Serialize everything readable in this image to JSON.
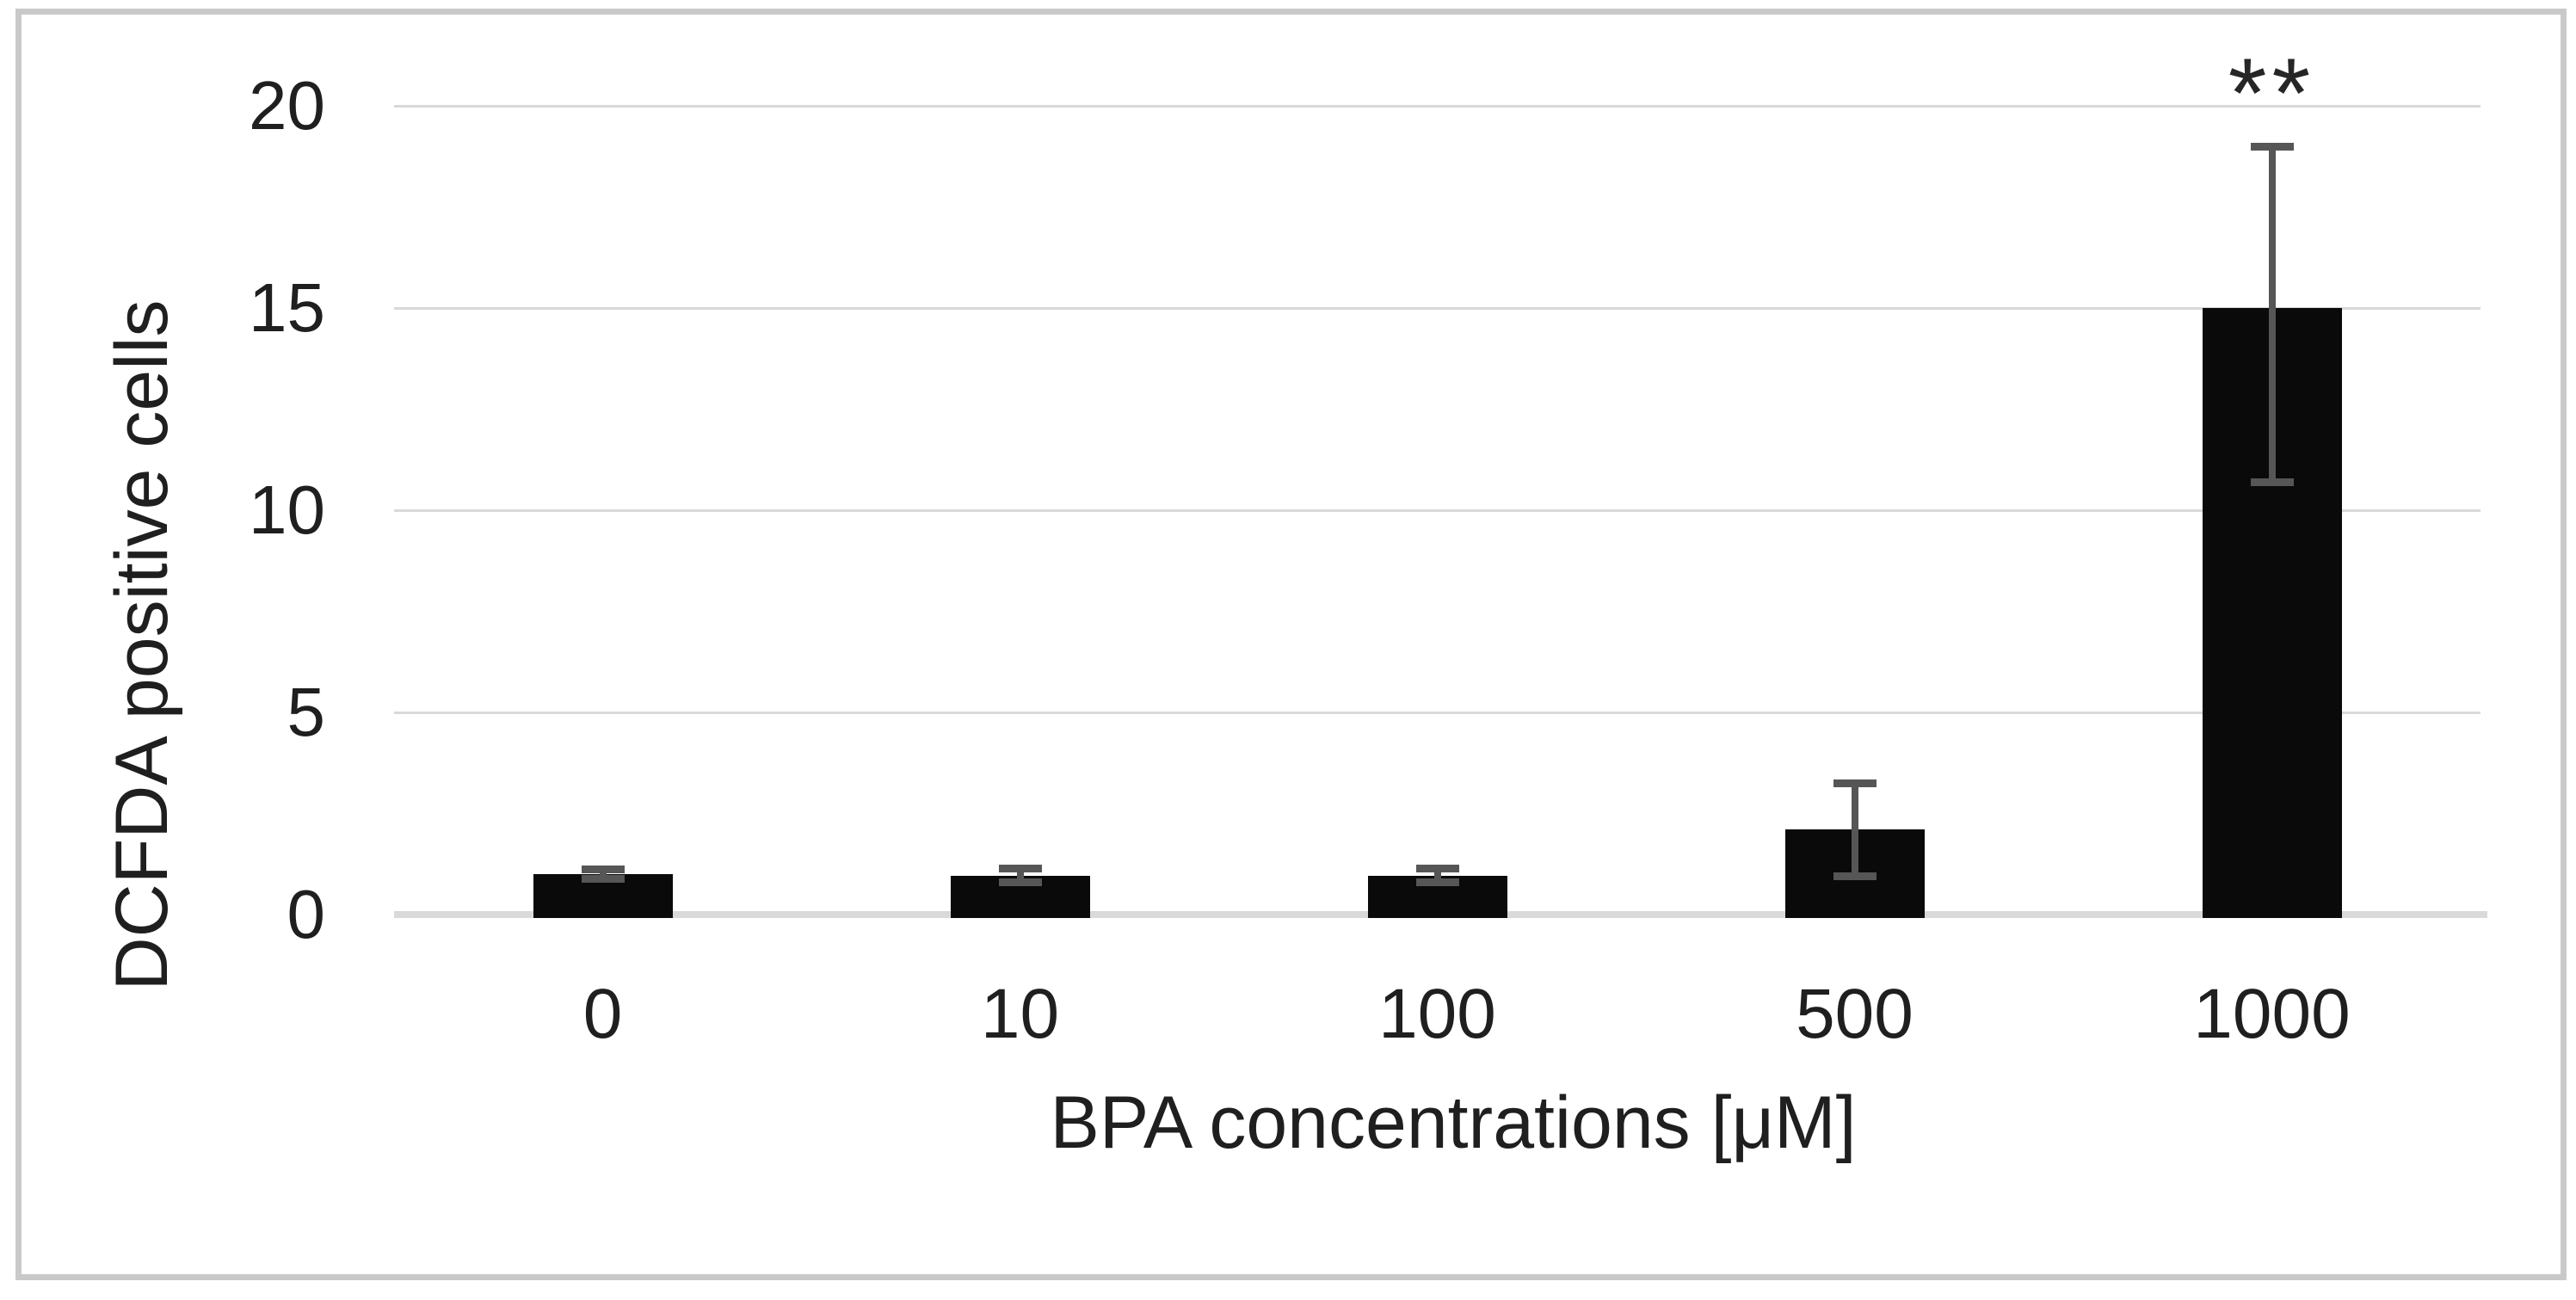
{
  "figure": {
    "background": "#ffffff",
    "border_color": "#c9c9c9"
  },
  "chart_data": {
    "type": "bar",
    "title": "",
    "xlabel": "BPA concentrations [μM]",
    "ylabel": "DCFDA positive cells",
    "categories": [
      "0",
      "10",
      "100",
      "500",
      "1000"
    ],
    "values": [
      1.0,
      0.95,
      0.95,
      2.1,
      15.0
    ],
    "error_bars": {
      "up": [
        0.12,
        0.18,
        0.18,
        1.15,
        4.0
      ],
      "down": [
        0.12,
        0.15,
        0.15,
        1.15,
        4.3
      ]
    },
    "ylim": [
      0,
      20
    ],
    "yticks": [
      0,
      5,
      10,
      15,
      20
    ],
    "grid": "horizontal",
    "legend": "none",
    "annotations": [
      {
        "text": "**",
        "category": "1000",
        "meaning": "statistical significance marker"
      }
    ],
    "colors": {
      "bar": "#0a0a0a",
      "error_bar": "#565656",
      "gridline": "#d9d9d9",
      "axis_line": "#d9d9d9",
      "text": "#1f1f1f"
    }
  }
}
